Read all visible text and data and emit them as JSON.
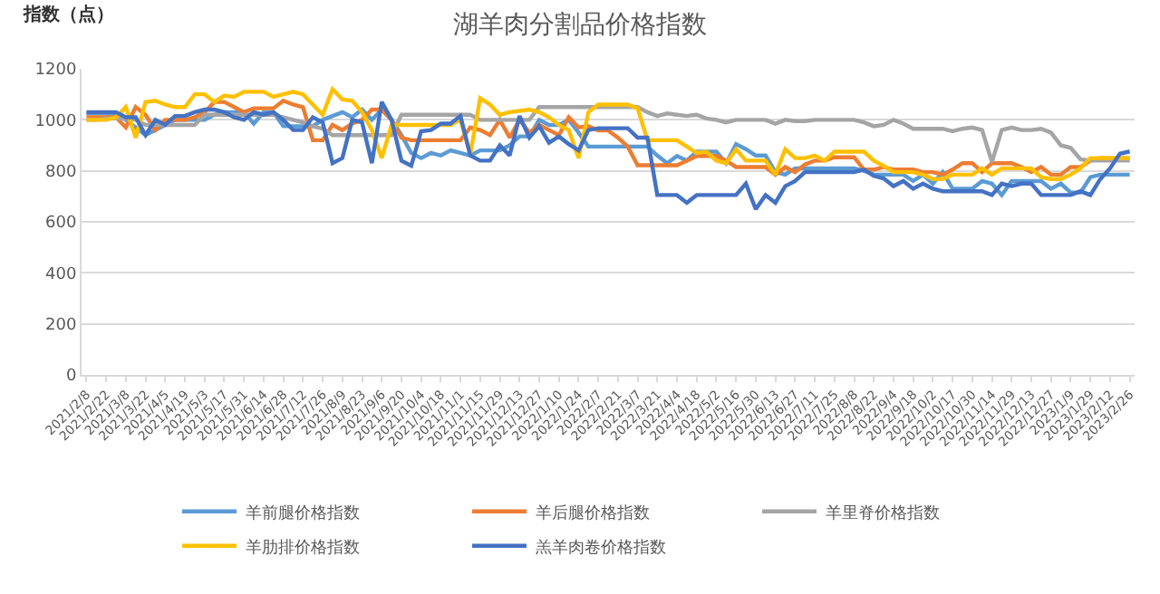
{
  "chart_data": {
    "type": "line",
    "title": "湖羊肉分割品价格指数",
    "ylabel": "指数（点）",
    "categories": [
      "2021/2/8",
      null,
      "2021/2/22",
      null,
      "2021/3/8",
      null,
      "2021/3/22",
      null,
      "2021/4/5",
      null,
      "2021/4/19",
      null,
      "2021/5/3",
      null,
      "2021/5/17",
      null,
      "2021/5/31",
      null,
      "2021/6/14",
      null,
      "2021/6/28",
      null,
      "2021/7/12",
      null,
      "2021/7/26",
      null,
      "2021/8/9",
      null,
      "2021/8/23",
      null,
      "2021/9/6",
      null,
      "2021/9/20",
      null,
      "2021/10/4",
      null,
      "2021/10/18",
      null,
      "2021/11/1",
      null,
      "2021/11/15",
      null,
      "2021/11/29",
      null,
      "2021/12/13",
      null,
      "2021/12/27",
      null,
      "2022/1/10",
      null,
      "2022/1/24",
      null,
      "2022/2/7",
      null,
      "2022/2/21",
      null,
      "2022/3/7",
      null,
      "2022/3/21",
      null,
      "2022/4/4",
      null,
      "2022/4/18",
      null,
      "2022/5/2",
      null,
      "2022/5/16",
      null,
      "2022/5/30",
      null,
      "2022/6/13",
      null,
      "2022/6/27",
      null,
      "2022/7/11",
      null,
      "2022/7/25",
      null,
      "2022/8/8",
      null,
      "2022/8/22",
      null,
      "2022/9/4",
      null,
      "2022/9/18",
      null,
      "2022/10/2",
      null,
      "2022/10/17",
      null,
      "2022/10/30",
      null,
      "2022/11/14",
      null,
      "2022/11/29",
      null,
      "2022/12/13",
      null,
      "2022/12/27",
      null,
      "2023/1/9",
      null,
      "2023/1/29",
      null,
      "2023/2/12",
      null,
      "2023/2/26"
    ],
    "series": [
      {
        "name": "羊前腿价格指数",
        "color": "#5b9bd5",
        "values": [
          1025,
          1025,
          1025,
          1020,
          1000,
          970,
          940,
          960,
          980,
          1000,
          1000,
          1000,
          1000,
          1020,
          1030,
          1030,
          1030,
          985,
          1030,
          1030,
          975,
          975,
          975,
          975,
          1000,
          1015,
          1030,
          1010,
          1040,
          1000,
          1040,
          1000,
          940,
          870,
          850,
          870,
          860,
          880,
          870,
          860,
          880,
          880,
          880,
          900,
          935,
          935,
          1000,
          980,
          980,
          1000,
          950,
          895,
          895,
          895,
          895,
          895,
          895,
          895,
          860,
          830,
          858,
          840,
          875,
          875,
          875,
          830,
          905,
          885,
          860,
          860,
          795,
          785,
          810,
          810,
          810,
          810,
          810,
          810,
          810,
          800,
          785,
          785,
          785,
          785,
          760,
          785,
          750,
          795,
          730,
          730,
          730,
          760,
          750,
          705,
          760,
          760,
          760,
          760,
          730,
          750,
          715,
          715,
          775,
          785,
          785,
          785,
          785
        ]
      },
      {
        "name": "羊后腿价格指数",
        "color": "#ed7d31",
        "values": [
          1010,
          1010,
          1010,
          1010,
          970,
          1050,
          1020,
          960,
          1000,
          1000,
          1000,
          1010,
          1030,
          1070,
          1070,
          1050,
          1030,
          1045,
          1045,
          1045,
          1075,
          1060,
          1050,
          920,
          920,
          980,
          960,
          985,
          1000,
          1040,
          1040,
          1000,
          930,
          920,
          920,
          920,
          920,
          920,
          920,
          970,
          960,
          940,
          1000,
          930,
          1000,
          950,
          980,
          960,
          940,
          1010,
          970,
          975,
          958,
          958,
          930,
          895,
          822,
          822,
          822,
          822,
          822,
          840,
          858,
          858,
          858,
          840,
          815,
          815,
          815,
          815,
          785,
          815,
          795,
          825,
          840,
          840,
          853,
          853,
          853,
          805,
          805,
          815,
          805,
          805,
          805,
          795,
          795,
          785,
          805,
          830,
          830,
          795,
          830,
          830,
          830,
          815,
          795,
          815,
          785,
          785,
          815,
          815,
          840,
          850,
          850,
          850,
          850
        ]
      },
      {
        "name": "羊里脊价格指数",
        "color": "#a5a5a5",
        "values": [
          1000,
          1000,
          1005,
          1005,
          1005,
          1000,
          980,
          980,
          980,
          980,
          980,
          980,
          1020,
          1020,
          1020,
          1020,
          1020,
          1020,
          1020,
          1020,
          1010,
          1000,
          990,
          975,
          965,
          940,
          940,
          940,
          940,
          940,
          940,
          940,
          1020,
          1020,
          1020,
          1020,
          1020,
          1020,
          1020,
          1020,
          1000,
          1000,
          1000,
          1000,
          1000,
          1000,
          1050,
          1050,
          1050,
          1050,
          1050,
          1050,
          1050,
          1050,
          1050,
          1050,
          1050,
          1030,
          1015,
          1025,
          1020,
          1015,
          1020,
          1005,
          1000,
          990,
          1000,
          1000,
          1000,
          1000,
          985,
          1000,
          995,
          995,
          1000,
          1000,
          1000,
          1000,
          1000,
          990,
          975,
          980,
          1000,
          985,
          965,
          965,
          965,
          965,
          955,
          965,
          970,
          960,
          835,
          960,
          970,
          960,
          960,
          965,
          950,
          900,
          890,
          845,
          840,
          840,
          840,
          840,
          840
        ]
      },
      {
        "name": "羊肋排价格指数",
        "color": "#ffc000",
        "values": [
          1000,
          1000,
          1000,
          1010,
          1050,
          930,
          1070,
          1075,
          1060,
          1050,
          1050,
          1100,
          1100,
          1070,
          1095,
          1090,
          1110,
          1110,
          1110,
          1090,
          1100,
          1110,
          1100,
          1060,
          1020,
          1120,
          1080,
          1075,
          1030,
          960,
          850,
          980,
          980,
          980,
          980,
          980,
          980,
          980,
          1000,
          865,
          1085,
          1060,
          1020,
          1030,
          1035,
          1040,
          1030,
          1010,
          980,
          960,
          850,
          1030,
          1060,
          1060,
          1060,
          1060,
          1045,
          920,
          920,
          920,
          920,
          895,
          870,
          875,
          840,
          830,
          885,
          840,
          840,
          840,
          785,
          885,
          850,
          850,
          860,
          840,
          875,
          875,
          875,
          875,
          840,
          820,
          795,
          795,
          795,
          785,
          768,
          768,
          785,
          785,
          785,
          810,
          785,
          810,
          810,
          810,
          810,
          775,
          768,
          768,
          785,
          810,
          850,
          850,
          850,
          850,
          850
        ]
      },
      {
        "name": "羔羊肉卷价格指数",
        "color": "#4472c4",
        "values": [
          1030,
          1030,
          1030,
          1030,
          1010,
          1010,
          940,
          1000,
          980,
          1015,
          1015,
          1030,
          1040,
          1040,
          1030,
          1010,
          1000,
          1030,
          1020,
          1030,
          1000,
          960,
          960,
          1010,
          990,
          830,
          850,
          1000,
          990,
          830,
          1070,
          1000,
          840,
          820,
          955,
          960,
          985,
          985,
          1015,
          860,
          840,
          840,
          900,
          860,
          1015,
          930,
          975,
          910,
          935,
          905,
          880,
          960,
          967,
          967,
          967,
          967,
          930,
          930,
          705,
          705,
          705,
          675,
          705,
          705,
          705,
          705,
          705,
          750,
          650,
          705,
          675,
          740,
          760,
          795,
          795,
          795,
          795,
          795,
          795,
          805,
          780,
          770,
          740,
          760,
          730,
          750,
          730,
          720,
          720,
          720,
          720,
          720,
          705,
          750,
          740,
          750,
          750,
          705,
          705,
          705,
          705,
          720,
          705,
          767,
          810,
          867,
          876
        ]
      }
    ],
    "ylim": [
      0,
      1200
    ],
    "yticks": [
      0,
      200,
      400,
      600,
      800,
      1000,
      1200
    ],
    "grid": "y",
    "legend": "bottom",
    "marker": "none",
    "line_style": "solid"
  }
}
